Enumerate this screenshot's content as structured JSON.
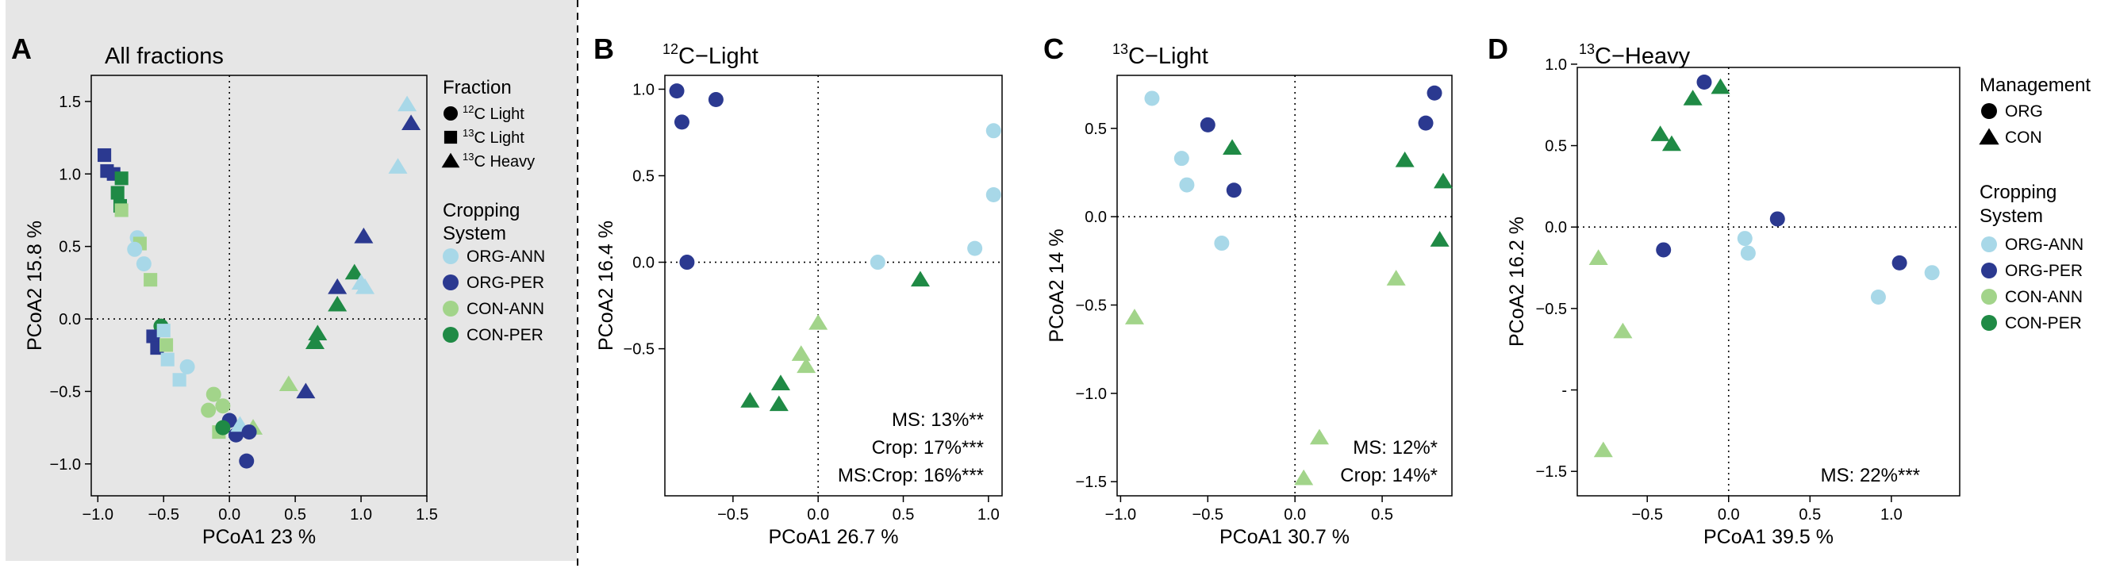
{
  "colors": {
    "ORG-ANN": "#a8d8e8",
    "ORG-PER": "#2b3990",
    "CON-ANN": "#a2d48a",
    "CON-PER": "#1f8a45",
    "panel_bg": "#e6e6e6"
  },
  "chart_data": [
    {
      "type": "scatter",
      "panel_letter": "A",
      "title": "All fractions",
      "xlabel": "PCoA1  23 %",
      "ylabel": "PCoA2  15.8 %",
      "xlim": [
        -1.05,
        1.5
      ],
      "ylim": [
        -1.22,
        1.68
      ],
      "xticks": [
        -1.0,
        -0.5,
        0.0,
        0.5,
        1.0,
        1.5
      ],
      "xticklabels": [
        "−1.0",
        "−0.5",
        "0.0",
        "0.5",
        "1.0",
        "1.5"
      ],
      "yticks": [
        -1.0,
        -0.5,
        0.0,
        0.5,
        1.0,
        1.5
      ],
      "yticklabels": [
        "−1.0",
        "−0.5",
        "0.0",
        "0.5",
        "1.0",
        "1.5"
      ],
      "stats": [],
      "points": [
        {
          "g": "ORG-PER",
          "s": "square",
          "x": -0.95,
          "y": 1.13
        },
        {
          "g": "ORG-PER",
          "s": "square",
          "x": -0.93,
          "y": 1.02
        },
        {
          "g": "ORG-PER",
          "s": "square",
          "x": -0.88,
          "y": 1.0
        },
        {
          "g": "CON-PER",
          "s": "square",
          "x": -0.82,
          "y": 0.97
        },
        {
          "g": "CON-PER",
          "s": "square",
          "x": -0.85,
          "y": 0.87
        },
        {
          "g": "CON-PER",
          "s": "square",
          "x": -0.83,
          "y": 0.78
        },
        {
          "g": "CON-ANN",
          "s": "square",
          "x": -0.82,
          "y": 0.75
        },
        {
          "g": "ORG-ANN",
          "s": "circle",
          "x": -0.7,
          "y": 0.56
        },
        {
          "g": "CON-ANN",
          "s": "square",
          "x": -0.68,
          "y": 0.52
        },
        {
          "g": "ORG-ANN",
          "s": "circle",
          "x": -0.72,
          "y": 0.48
        },
        {
          "g": "ORG-ANN",
          "s": "circle",
          "x": -0.65,
          "y": 0.38
        },
        {
          "g": "CON-ANN",
          "s": "square",
          "x": -0.6,
          "y": 0.27
        },
        {
          "g": "CON-PER",
          "s": "circle",
          "x": -0.52,
          "y": -0.05
        },
        {
          "g": "ORG-PER",
          "s": "square",
          "x": -0.58,
          "y": -0.12
        },
        {
          "g": "ORG-ANN",
          "s": "square",
          "x": -0.5,
          "y": -0.08
        },
        {
          "g": "ORG-PER",
          "s": "square",
          "x": -0.55,
          "y": -0.2
        },
        {
          "g": "CON-ANN",
          "s": "square",
          "x": -0.48,
          "y": -0.18
        },
        {
          "g": "ORG-ANN",
          "s": "square",
          "x": -0.47,
          "y": -0.28
        },
        {
          "g": "ORG-ANN",
          "s": "circle",
          "x": -0.32,
          "y": -0.33
        },
        {
          "g": "ORG-ANN",
          "s": "square",
          "x": -0.38,
          "y": -0.42
        },
        {
          "g": "CON-ANN",
          "s": "circle",
          "x": -0.12,
          "y": -0.52
        },
        {
          "g": "CON-ANN",
          "s": "circle",
          "x": -0.16,
          "y": -0.63
        },
        {
          "g": "CON-ANN",
          "s": "circle",
          "x": -0.05,
          "y": -0.6
        },
        {
          "g": "CON-ANN",
          "s": "square",
          "x": -0.08,
          "y": -0.78
        },
        {
          "g": "ORG-PER",
          "s": "circle",
          "x": 0.0,
          "y": -0.7
        },
        {
          "g": "CON-PER",
          "s": "circle",
          "x": -0.05,
          "y": -0.75
        },
        {
          "g": "ORG-PER",
          "s": "circle",
          "x": 0.05,
          "y": -0.8
        },
        {
          "g": "ORG-ANN",
          "s": "triangle",
          "x": 0.08,
          "y": -0.73
        },
        {
          "g": "CON-ANN",
          "s": "triangle",
          "x": 0.18,
          "y": -0.75
        },
        {
          "g": "ORG-PER",
          "s": "circle",
          "x": 0.15,
          "y": -0.78
        },
        {
          "g": "ORG-PER",
          "s": "circle",
          "x": 0.13,
          "y": -0.98
        },
        {
          "g": "CON-ANN",
          "s": "triangle",
          "x": 0.45,
          "y": -0.45
        },
        {
          "g": "ORG-PER",
          "s": "triangle",
          "x": 0.58,
          "y": -0.5
        },
        {
          "g": "CON-PER",
          "s": "triangle",
          "x": 0.65,
          "y": -0.16
        },
        {
          "g": "CON-PER",
          "s": "triangle",
          "x": 0.67,
          "y": -0.1
        },
        {
          "g": "CON-PER",
          "s": "triangle",
          "x": 0.82,
          "y": 0.1
        },
        {
          "g": "ORG-PER",
          "s": "triangle",
          "x": 0.82,
          "y": 0.22
        },
        {
          "g": "CON-PER",
          "s": "triangle",
          "x": 0.95,
          "y": 0.32
        },
        {
          "g": "ORG-ANN",
          "s": "triangle",
          "x": 1.0,
          "y": 0.25
        },
        {
          "g": "ORG-ANN",
          "s": "triangle",
          "x": 1.03,
          "y": 0.22
        },
        {
          "g": "ORG-PER",
          "s": "triangle",
          "x": 1.02,
          "y": 0.57
        },
        {
          "g": "ORG-ANN",
          "s": "triangle",
          "x": 1.28,
          "y": 1.05
        },
        {
          "g": "ORG-ANN",
          "s": "triangle",
          "x": 1.35,
          "y": 1.48
        },
        {
          "g": "ORG-PER",
          "s": "triangle",
          "x": 1.38,
          "y": 1.35
        }
      ]
    },
    {
      "type": "scatter",
      "panel_letter": "B",
      "title_sup": "12",
      "title_main": "C−Light",
      "xlabel": "PCoA1  26.7 %",
      "ylabel": "PCoA2  16.4 %",
      "xlim": [
        -0.9,
        1.08
      ],
      "ylim": [
        -1.35,
        1.08
      ],
      "xticks": [
        -0.5,
        0.0,
        0.5,
        1.0
      ],
      "xticklabels": [
        "−0.5",
        "0.0",
        "0.5",
        "1.0"
      ],
      "yticks": [
        -0.5,
        0.0,
        0.5,
        1.0
      ],
      "yticklabels": [
        "−0.5",
        "0.0",
        "0.5",
        "1.0"
      ],
      "stats": [
        "MS: 13%**",
        "Crop: 17%***",
        "MS:Crop: 16%***"
      ],
      "points": [
        {
          "g": "ORG-PER",
          "s": "circle",
          "x": -0.83,
          "y": 0.99
        },
        {
          "g": "ORG-PER",
          "s": "circle",
          "x": -0.8,
          "y": 0.81
        },
        {
          "g": "ORG-PER",
          "s": "circle",
          "x": -0.6,
          "y": 0.94
        },
        {
          "g": "ORG-PER",
          "s": "circle",
          "x": -0.77,
          "y": 0.0
        },
        {
          "g": "ORG-ANN",
          "s": "circle",
          "x": 0.35,
          "y": 0.0
        },
        {
          "g": "ORG-ANN",
          "s": "circle",
          "x": 0.92,
          "y": 0.08
        },
        {
          "g": "ORG-ANN",
          "s": "circle",
          "x": 1.03,
          "y": 0.39
        },
        {
          "g": "ORG-ANN",
          "s": "circle",
          "x": 1.03,
          "y": 0.76
        },
        {
          "g": "CON-PER",
          "s": "triangle",
          "x": 0.6,
          "y": -0.1
        },
        {
          "g": "CON-ANN",
          "s": "triangle",
          "x": 0.0,
          "y": -0.35
        },
        {
          "g": "CON-ANN",
          "s": "triangle",
          "x": -0.1,
          "y": -0.53
        },
        {
          "g": "CON-ANN",
          "s": "triangle",
          "x": -0.07,
          "y": -0.6
        },
        {
          "g": "CON-PER",
          "s": "triangle",
          "x": -0.22,
          "y": -0.7
        },
        {
          "g": "CON-PER",
          "s": "triangle",
          "x": -0.4,
          "y": -0.8
        },
        {
          "g": "CON-PER",
          "s": "triangle",
          "x": -0.23,
          "y": -0.82
        }
      ]
    },
    {
      "type": "scatter",
      "panel_letter": "C",
      "title_sup": "13",
      "title_main": "C−Light",
      "xlabel": "PCoA1  30.7 %",
      "ylabel": "PCoA2  14 %",
      "xlim": [
        -1.02,
        0.9
      ],
      "ylim": [
        -1.58,
        0.8
      ],
      "xticks": [
        -1.0,
        -0.5,
        0.0,
        0.5
      ],
      "xticklabels": [
        "−1.0",
        "−0.5",
        "0.0",
        "0.5"
      ],
      "yticks": [
        -1.5,
        -1.0,
        -0.5,
        0.0,
        0.5
      ],
      "yticklabels": [
        "−1.5",
        "−1.0",
        "−0.5",
        "0.0",
        "0.5"
      ],
      "stats": [
        "MS: 12%*",
        "Crop: 14%*"
      ],
      "points": [
        {
          "g": "ORG-ANN",
          "s": "circle",
          "x": -0.82,
          "y": 0.67
        },
        {
          "g": "ORG-ANN",
          "s": "circle",
          "x": -0.65,
          "y": 0.33
        },
        {
          "g": "ORG-ANN",
          "s": "circle",
          "x": -0.62,
          "y": 0.18
        },
        {
          "g": "ORG-ANN",
          "s": "circle",
          "x": -0.42,
          "y": -0.15
        },
        {
          "g": "ORG-PER",
          "s": "circle",
          "x": -0.5,
          "y": 0.52
        },
        {
          "g": "ORG-PER",
          "s": "circle",
          "x": -0.35,
          "y": 0.15
        },
        {
          "g": "CON-PER",
          "s": "triangle",
          "x": -0.36,
          "y": 0.39
        },
        {
          "g": "ORG-PER",
          "s": "circle",
          "x": 0.8,
          "y": 0.7
        },
        {
          "g": "ORG-PER",
          "s": "circle",
          "x": 0.75,
          "y": 0.53
        },
        {
          "g": "CON-PER",
          "s": "triangle",
          "x": 0.63,
          "y": 0.32
        },
        {
          "g": "CON-PER",
          "s": "triangle",
          "x": 0.85,
          "y": 0.2
        },
        {
          "g": "CON-PER",
          "s": "triangle",
          "x": 0.83,
          "y": -0.13
        },
        {
          "g": "CON-ANN",
          "s": "triangle",
          "x": 0.58,
          "y": -0.35
        },
        {
          "g": "CON-ANN",
          "s": "triangle",
          "x": -0.92,
          "y": -0.57
        },
        {
          "g": "CON-ANN",
          "s": "triangle",
          "x": 0.14,
          "y": -1.25
        },
        {
          "g": "CON-ANN",
          "s": "triangle",
          "x": 0.05,
          "y": -1.48
        }
      ]
    },
    {
      "type": "scatter",
      "panel_letter": "D",
      "title_sup": "13",
      "title_main": "C−Heavy",
      "xlabel": "PCoA1  39.5 %",
      "ylabel": "PCoA2  16.2 %",
      "xlim": [
        -0.93,
        1.42
      ],
      "ylim": [
        -1.65,
        0.98
      ],
      "xticks": [
        -0.5,
        0.0,
        0.5,
        1.0
      ],
      "xticklabels": [
        "−0.5",
        "0.0",
        "0.5",
        "1.0"
      ],
      "yticks": [
        -1.5,
        -1.0,
        -0.5,
        0.0,
        0.5,
        1.0
      ],
      "yticklabels": [
        "−1.5",
        "-",
        "−0.5",
        "0.0",
        "0.5",
        "1.0"
      ],
      "stats": [
        "MS: 22%***"
      ],
      "points": [
        {
          "g": "ORG-PER",
          "s": "circle",
          "x": -0.15,
          "y": 0.89
        },
        {
          "g": "CON-PER",
          "s": "triangle",
          "x": -0.05,
          "y": 0.86
        },
        {
          "g": "CON-PER",
          "s": "triangle",
          "x": -0.22,
          "y": 0.79
        },
        {
          "g": "CON-PER",
          "s": "triangle",
          "x": -0.42,
          "y": 0.57
        },
        {
          "g": "CON-PER",
          "s": "triangle",
          "x": -0.35,
          "y": 0.51
        },
        {
          "g": "ORG-PER",
          "s": "circle",
          "x": 0.3,
          "y": 0.05
        },
        {
          "g": "ORG-ANN",
          "s": "circle",
          "x": 0.1,
          "y": -0.07
        },
        {
          "g": "ORG-ANN",
          "s": "circle",
          "x": 0.12,
          "y": -0.16
        },
        {
          "g": "ORG-PER",
          "s": "circle",
          "x": -0.4,
          "y": -0.14
        },
        {
          "g": "CON-ANN",
          "s": "triangle",
          "x": -0.8,
          "y": -0.19
        },
        {
          "g": "CON-ANN",
          "s": "triangle",
          "x": -0.65,
          "y": -0.64
        },
        {
          "g": "CON-ANN",
          "s": "triangle",
          "x": -0.77,
          "y": -1.37
        },
        {
          "g": "ORG-PER",
          "s": "circle",
          "x": 1.05,
          "y": -0.22
        },
        {
          "g": "ORG-ANN",
          "s": "circle",
          "x": 0.92,
          "y": -0.43
        },
        {
          "g": "ORG-ANN",
          "s": "circle",
          "x": 1.25,
          "y": -0.28
        }
      ]
    }
  ],
  "legend_a": {
    "fraction_title": "Fraction",
    "fraction_items": [
      {
        "shape": "circle",
        "sup": "12",
        "label": "C Light"
      },
      {
        "shape": "square",
        "sup": "13",
        "label": "C Light"
      },
      {
        "shape": "triangle",
        "sup": "13",
        "label": "C Heavy"
      }
    ],
    "cropping_title_1": "Cropping",
    "cropping_title_2": "System",
    "cropping_items": [
      "ORG-ANN",
      "ORG-PER",
      "CON-ANN",
      "CON-PER"
    ]
  },
  "legend_d": {
    "management_title": "Management",
    "management_items": [
      {
        "shape": "circle",
        "label": "ORG"
      },
      {
        "shape": "triangle",
        "label": "CON"
      }
    ],
    "cropping_title_1": "Cropping",
    "cropping_title_2": "System",
    "cropping_items": [
      "ORG-ANN",
      "ORG-PER",
      "CON-ANN",
      "CON-PER"
    ]
  }
}
